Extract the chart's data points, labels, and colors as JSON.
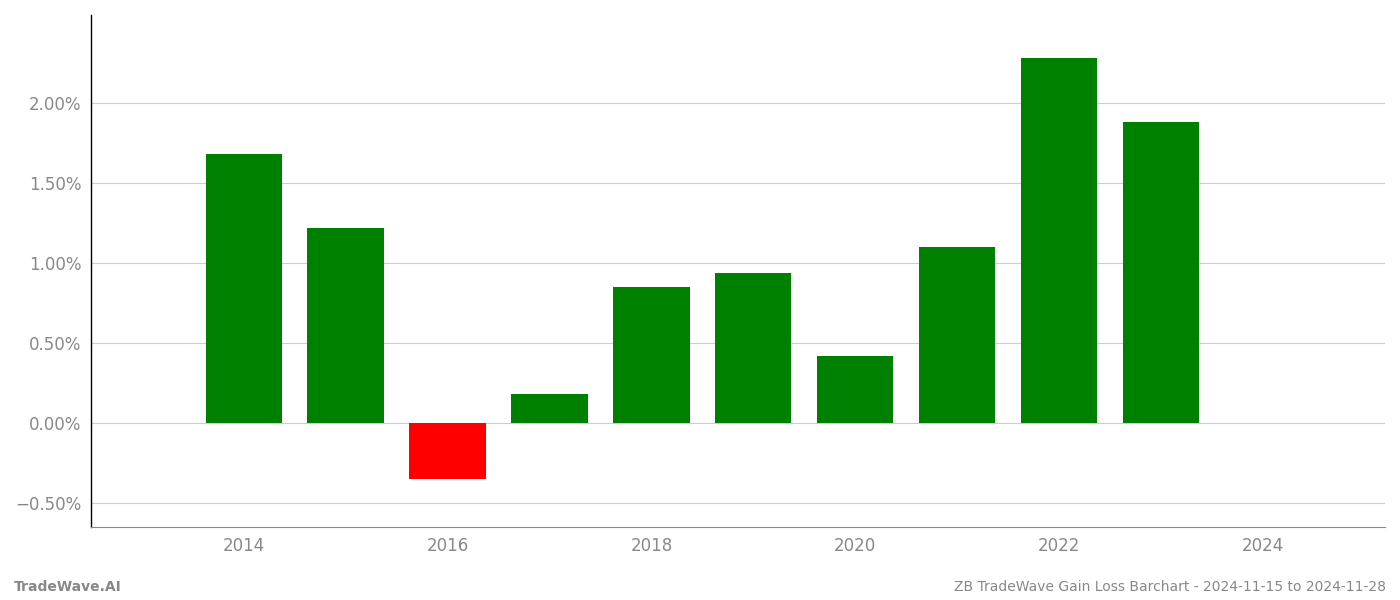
{
  "years": [
    2014,
    2015,
    2016,
    2017,
    2018,
    2019,
    2020,
    2021,
    2022,
    2023
  ],
  "values": [
    0.0168,
    0.0122,
    -0.0035,
    0.0018,
    0.0085,
    0.0094,
    0.0042,
    0.011,
    0.0228,
    0.0188
  ],
  "bar_colors": [
    "#008000",
    "#008000",
    "#ff0000",
    "#008000",
    "#008000",
    "#008000",
    "#008000",
    "#008000",
    "#008000",
    "#008000"
  ],
  "footer_left": "TradeWave.AI",
  "footer_right": "ZB TradeWave Gain Loss Barchart - 2024-11-15 to 2024-11-28",
  "ylim": [
    -0.0065,
    0.0255
  ],
  "yticks": [
    -0.005,
    0.0,
    0.005,
    0.01,
    0.015,
    0.02
  ],
  "ytick_labels": [
    "−0.50%",
    "0.00%",
    "0.50%",
    "1.00%",
    "1.50%",
    "2.00%"
  ],
  "xticks": [
    2014,
    2016,
    2018,
    2020,
    2022,
    2024
  ],
  "xlim": [
    2012.5,
    2025.2
  ],
  "bar_width": 0.75,
  "background_color": "#ffffff",
  "grid_color": "#cccccc",
  "spine_color": "#888888",
  "tick_label_color": "#888888",
  "footer_color": "#888888",
  "tick_fontsize": 12,
  "footer_fontsize": 10
}
